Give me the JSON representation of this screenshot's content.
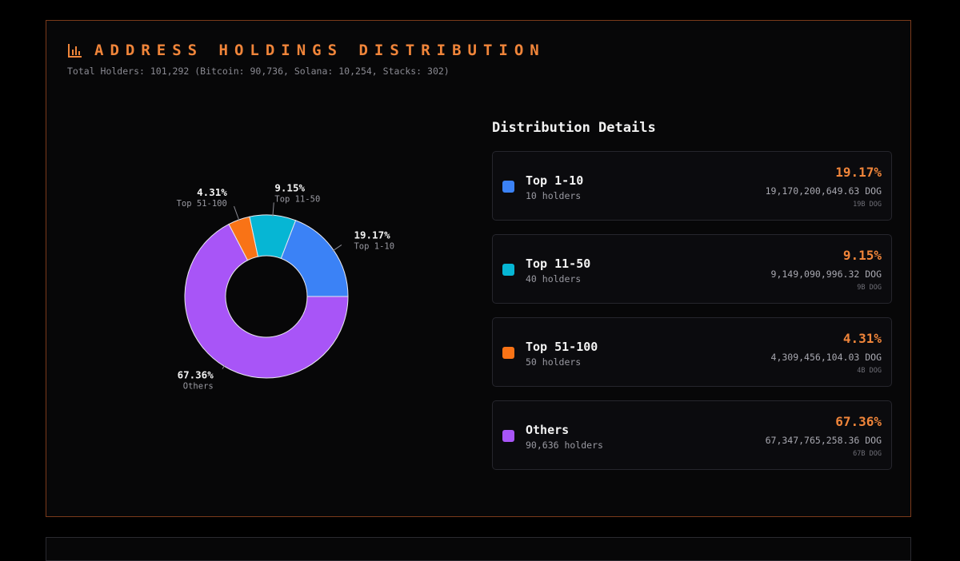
{
  "header": {
    "title": "ADDRESS HOLDINGS DISTRIBUTION",
    "subtitle": "Total Holders: 101,292 (Bitcoin: 90,736, Solana: 10,254, Stacks: 302)"
  },
  "details": {
    "title": "Distribution Details",
    "items": [
      {
        "name": "Top 1-10",
        "holders": "10 holders",
        "percent": "19.17%",
        "amount": "19,170,200,649.63 DOG",
        "short": "19B DOG"
      },
      {
        "name": "Top 11-50",
        "holders": "40 holders",
        "percent": "9.15%",
        "amount": "9,149,090,996.32 DOG",
        "short": "9B DOG"
      },
      {
        "name": "Top 51-100",
        "holders": "50 holders",
        "percent": "4.31%",
        "amount": "4,309,456,104.03 DOG",
        "short": "4B DOG"
      },
      {
        "name": "Others",
        "holders": "90,636 holders",
        "percent": "67.36%",
        "amount": "67,347,765,258.36 DOG",
        "short": "67B DOG"
      }
    ]
  },
  "chart_data": {
    "type": "pie",
    "title": "ADDRESS HOLDINGS DISTRIBUTION",
    "categories": [
      "Top 1-10",
      "Top 11-50",
      "Top 51-100",
      "Others"
    ],
    "values": [
      19.17,
      9.15,
      4.31,
      67.36
    ],
    "labels": [
      "19.17%",
      "9.15%",
      "4.31%",
      "67.36%"
    ],
    "colors": [
      "#3b82f6",
      "#06b6d4",
      "#f97316",
      "#a855f7"
    ],
    "donut": true,
    "legend": "none"
  },
  "colors": {
    "accent": "#f0853a",
    "border": "#7a3a1a",
    "background": "#070708"
  },
  "icons": {
    "title_icon": "bar-chart-icon"
  }
}
